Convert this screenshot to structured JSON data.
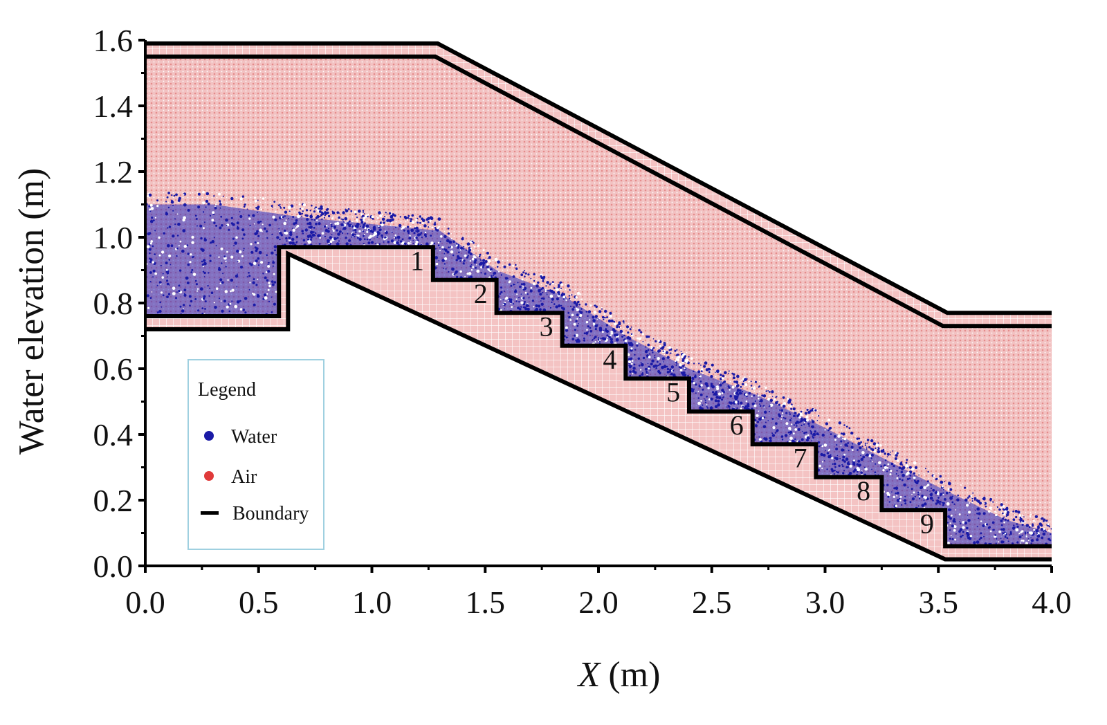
{
  "chart_data": {
    "type": "scatter",
    "title": "",
    "xlabel": "X",
    "xlabel_unit": "(m)",
    "ylabel": "Water elevation (m)",
    "xlim": [
      0.0,
      4.0
    ],
    "ylim": [
      0.0,
      1.6
    ],
    "x_ticks": [
      "0.0",
      "0.5",
      "1.0",
      "1.5",
      "2.0",
      "2.5",
      "3.0",
      "3.5",
      "4.0"
    ],
    "y_ticks": [
      "0.0",
      "0.2",
      "0.4",
      "0.6",
      "0.8",
      "1.0",
      "1.2",
      "1.4",
      "1.6"
    ],
    "grid": false,
    "legend_position": "lower-left",
    "legend": {
      "title": "Legend",
      "items": [
        {
          "label": "Water",
          "color": "#1a1aa6",
          "marker": "dot"
        },
        {
          "label": "Air",
          "color": "#e03a3a",
          "marker": "dot"
        },
        {
          "label": "Boundary",
          "color": "#000000",
          "marker": "line"
        }
      ]
    },
    "colors": {
      "water": "#1a1aa6",
      "air": "#f0b9b9",
      "boundary": "#000000"
    },
    "step_labels": [
      {
        "label": "1",
        "x": 1.2,
        "y": 0.9
      },
      {
        "label": "2",
        "x": 1.48,
        "y": 0.8
      },
      {
        "label": "3",
        "x": 1.77,
        "y": 0.7
      },
      {
        "label": "4",
        "x": 2.05,
        "y": 0.6
      },
      {
        "label": "5",
        "x": 2.33,
        "y": 0.5
      },
      {
        "label": "6",
        "x": 2.61,
        "y": 0.4
      },
      {
        "label": "7",
        "x": 2.89,
        "y": 0.3
      },
      {
        "label": "8",
        "x": 3.17,
        "y": 0.2
      },
      {
        "label": "9",
        "x": 3.45,
        "y": 0.1
      }
    ],
    "boundary": {
      "inner_top": [
        [
          0.0,
          1.55
        ],
        [
          1.28,
          1.55
        ],
        [
          3.52,
          0.73
        ],
        [
          4.0,
          0.73
        ]
      ],
      "outer_top": [
        [
          0.0,
          1.59
        ],
        [
          1.29,
          1.59
        ],
        [
          3.54,
          0.77
        ],
        [
          4.0,
          0.77
        ]
      ],
      "steps": [
        [
          0.0,
          0.76
        ],
        [
          0.59,
          0.76
        ],
        [
          0.59,
          0.97
        ],
        [
          1.27,
          0.97
        ],
        [
          1.27,
          0.87
        ],
        [
          1.55,
          0.87
        ],
        [
          1.55,
          0.77
        ],
        [
          1.84,
          0.77
        ],
        [
          1.84,
          0.67
        ],
        [
          2.12,
          0.67
        ],
        [
          2.12,
          0.57
        ],
        [
          2.4,
          0.57
        ],
        [
          2.4,
          0.47
        ],
        [
          2.68,
          0.47
        ],
        [
          2.68,
          0.37
        ],
        [
          2.96,
          0.37
        ],
        [
          2.96,
          0.27
        ],
        [
          3.25,
          0.27
        ],
        [
          3.25,
          0.17
        ],
        [
          3.53,
          0.17
        ],
        [
          3.53,
          0.06
        ],
        [
          4.0,
          0.06
        ]
      ],
      "lower_wall": [
        [
          0.0,
          0.72
        ],
        [
          0.63,
          0.72
        ],
        [
          0.63,
          0.95
        ],
        [
          3.53,
          0.02
        ],
        [
          4.0,
          0.02
        ]
      ]
    },
    "water_profile": [
      [
        0.0,
        1.1
      ],
      [
        0.3,
        1.1
      ],
      [
        0.7,
        1.06
      ],
      [
        1.0,
        1.04
      ],
      [
        1.3,
        1.02
      ],
      [
        1.55,
        0.9
      ],
      [
        1.85,
        0.82
      ],
      [
        2.12,
        0.7
      ],
      [
        2.4,
        0.6
      ],
      [
        2.7,
        0.52
      ],
      [
        3.0,
        0.42
      ],
      [
        3.25,
        0.33
      ],
      [
        3.5,
        0.24
      ],
      [
        3.8,
        0.14
      ],
      [
        4.0,
        0.1
      ]
    ]
  }
}
